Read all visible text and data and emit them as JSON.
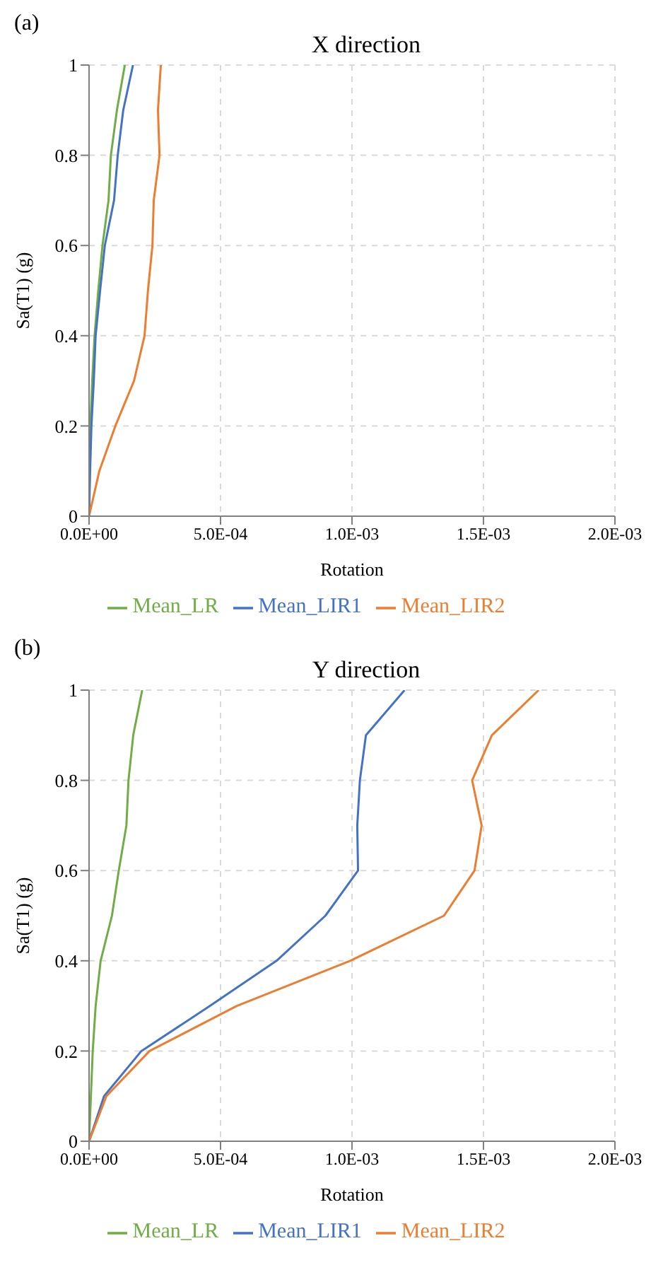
{
  "chart_data": [
    {
      "type": "line",
      "title": "X direction",
      "annotations": [
        "(a)"
      ],
      "xlabel": "Rotation",
      "ylabel": "Sa(T1) (g)",
      "xlim": [
        0,
        0.002
      ],
      "xticks": [
        {
          "value": 0,
          "label": "0.0E+00"
        },
        {
          "value": 0.0005,
          "label": "5.0E-04"
        },
        {
          "value": 0.001,
          "label": "1.0E-03"
        },
        {
          "value": 0.0015,
          "label": "1.5E-03"
        },
        {
          "value": 0.002,
          "label": "2.0E-03"
        }
      ],
      "ylim": [
        0,
        1
      ],
      "yticks": [
        0,
        0.2,
        0.4,
        0.6,
        0.8,
        1
      ],
      "grid": true,
      "legend": "bottom",
      "marker": "none",
      "line_style": "solid",
      "series": [
        {
          "name": "Mean_LR",
          "color": "#70ad47",
          "x": [
            0,
            2e-06,
            5e-06,
            1.2e-05,
            2.1e-05,
            3.5e-05,
            5.1e-05,
            7.4e-05,
            8.3e-05,
            0.000106,
            0.000136
          ],
          "values": [
            0,
            0.1,
            0.2,
            0.3,
            0.4,
            0.5,
            0.6,
            0.7,
            0.8,
            0.9,
            1
          ]
        },
        {
          "name": "Mean_LIR1",
          "color": "#4472c4",
          "x": [
            0,
            4e-06,
            9e-06,
            1.8e-05,
            2.5e-05,
            4.2e-05,
            6e-05,
            9.5e-05,
            0.000109,
            0.00013,
            0.000167
          ],
          "values": [
            0,
            0.1,
            0.2,
            0.3,
            0.4,
            0.5,
            0.6,
            0.7,
            0.8,
            0.9,
            1
          ]
        },
        {
          "name": "Mean_LIR2",
          "color": "#ed7d31",
          "x": [
            0,
            3.9e-05,
            0.0001,
            0.000171,
            0.000211,
            0.000224,
            0.000241,
            0.000246,
            0.000268,
            0.000262,
            0.000273
          ],
          "values": [
            0,
            0.1,
            0.2,
            0.3,
            0.4,
            0.5,
            0.6,
            0.7,
            0.8,
            0.9,
            1
          ]
        }
      ]
    },
    {
      "type": "line",
      "title": "Y direction",
      "annotations": [
        "(b)"
      ],
      "xlabel": "Rotation",
      "ylabel": "Sa(T1) (g)",
      "xlim": [
        0,
        0.002
      ],
      "xticks": [
        {
          "value": 0,
          "label": "0.0E+00"
        },
        {
          "value": 0.0005,
          "label": "5.0E-04"
        },
        {
          "value": 0.001,
          "label": "1.0E-03"
        },
        {
          "value": 0.0015,
          "label": "1.5E-03"
        },
        {
          "value": 0.002,
          "label": "2.0E-03"
        }
      ],
      "ylim": [
        0,
        1
      ],
      "yticks": [
        0,
        0.2,
        0.4,
        0.6,
        0.8,
        1
      ],
      "grid": true,
      "legend": "bottom",
      "marker": "none",
      "line_style": "solid",
      "series": [
        {
          "name": "Mean_LR",
          "color": "#70ad47",
          "x": [
            0,
            7e-06,
            1.4e-05,
            2.5e-05,
            4.4e-05,
            8.7e-05,
            0.000113,
            0.000142,
            0.00015,
            0.000168,
            0.000202
          ],
          "values": [
            0,
            0.1,
            0.2,
            0.3,
            0.4,
            0.5,
            0.6,
            0.7,
            0.8,
            0.9,
            1
          ]
        },
        {
          "name": "Mean_LIR1",
          "color": "#4472c4",
          "x": [
            0,
            5.7e-05,
            0.000199,
            0.00046,
            0.000713,
            0.000899,
            0.001023,
            0.00102,
            0.00103,
            0.001053,
            0.0012
          ],
          "values": [
            0,
            0.1,
            0.2,
            0.3,
            0.4,
            0.5,
            0.6,
            0.7,
            0.8,
            0.9,
            1
          ]
        },
        {
          "name": "Mean_LIR2",
          "color": "#ed7d31",
          "x": [
            0,
            6.6e-05,
            0.00023,
            0.000562,
            0.000993,
            0.00135,
            0.001466,
            0.001493,
            0.001457,
            0.001532,
            0.00171
          ],
          "values": [
            0,
            0.1,
            0.2,
            0.3,
            0.4,
            0.5,
            0.6,
            0.7,
            0.8,
            0.9,
            1
          ]
        }
      ]
    }
  ]
}
